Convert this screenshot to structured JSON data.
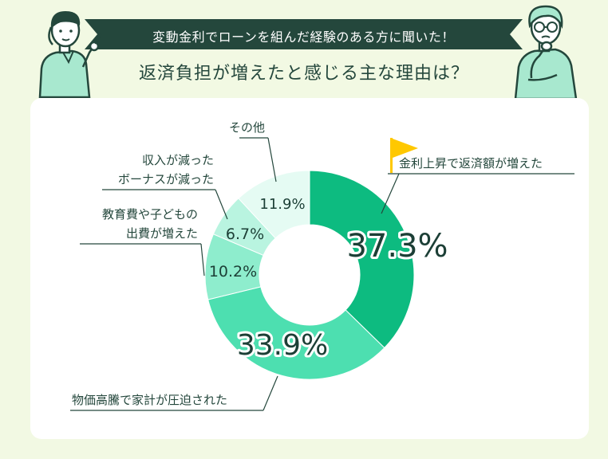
{
  "banner": {
    "text": "変動金利でローンを組んだ経験のある方に聞いた！"
  },
  "title": "返済負担が増えたと感じる主な理由は？",
  "chart_data": {
    "type": "pie",
    "donut": true,
    "title": "",
    "values": [
      37.3,
      33.9,
      10.2,
      6.7,
      11.9
    ],
    "value_labels": [
      "37.3%",
      "33.9%",
      "10.2%",
      "6.7%",
      "11.9%"
    ],
    "labels": [
      [
        "金利上昇で返済額が増えた"
      ],
      [
        "物価高騰で家計が圧迫された"
      ],
      [
        "教育費や子どもの",
        "出費が増えた"
      ],
      [
        "収入が減った",
        "ボーナスが減った"
      ],
      [
        "その他"
      ]
    ],
    "colors": [
      "#0dbb80",
      "#4ddfb0",
      "#8eedcd",
      "#b9f4e0",
      "#e5fbf3"
    ],
    "highlight_color": "#ffc800"
  }
}
